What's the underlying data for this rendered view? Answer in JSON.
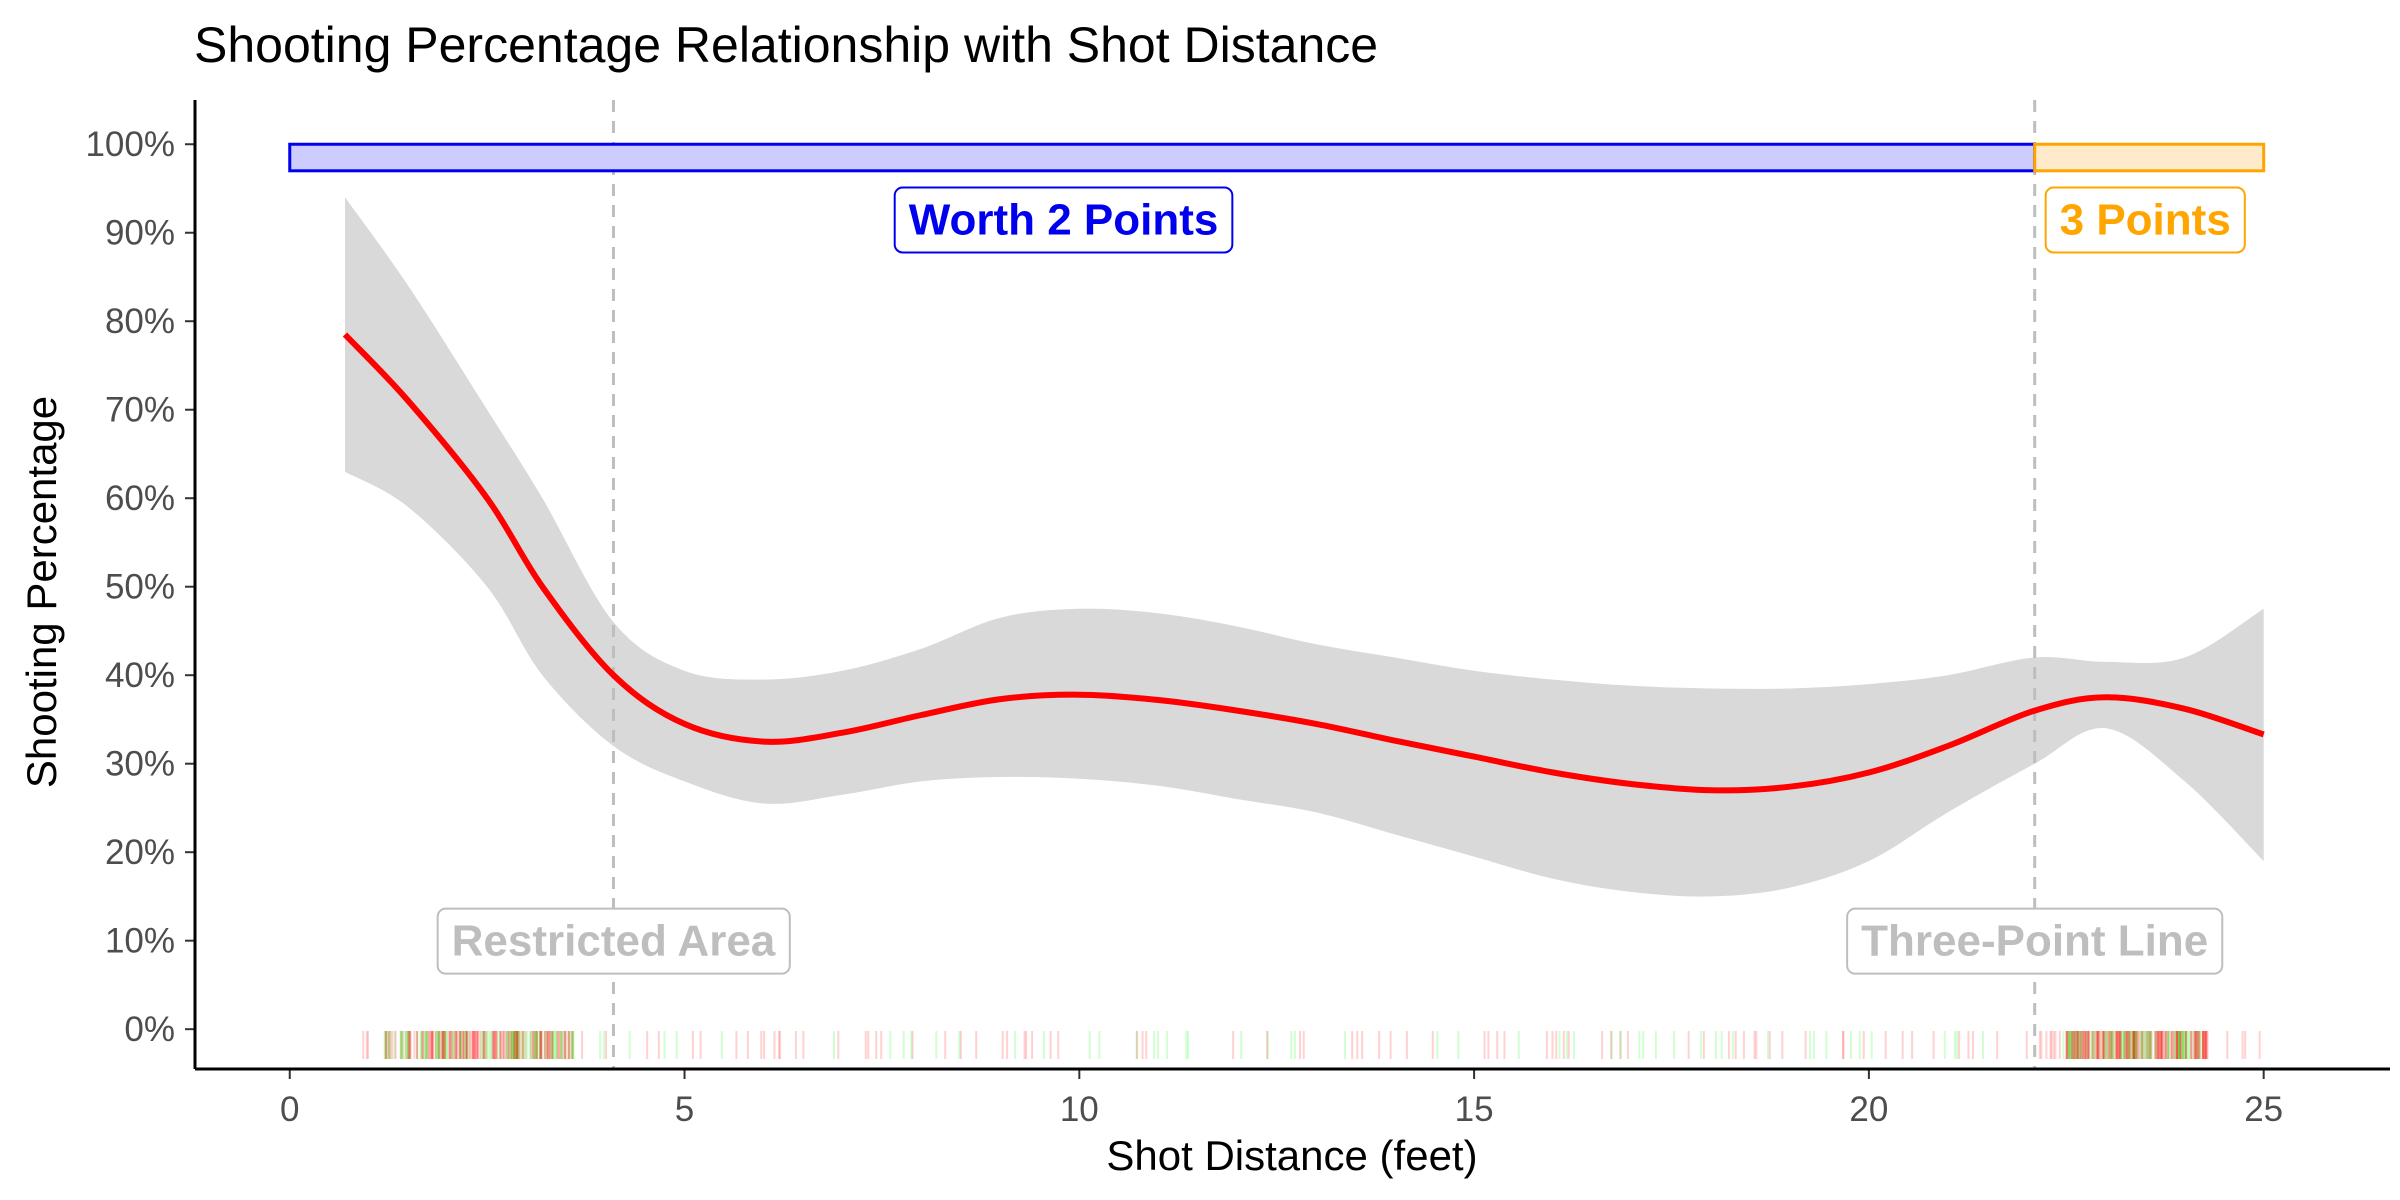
{
  "chart_data": {
    "type": "line",
    "title": "Shooting Percentage Relationship with Shot Distance",
    "xlabel": "Shot Distance (feet)",
    "ylabel": "Shooting Percentage",
    "xlim": [
      -1.2,
      26.6
    ],
    "ylim": [
      -0.045,
      1.05
    ],
    "x_ticks": [
      0,
      5,
      10,
      15,
      20,
      25
    ],
    "x_tick_labels": [
      "0",
      "5",
      "10",
      "15",
      "20",
      "25"
    ],
    "y_ticks": [
      0,
      0.1,
      0.2,
      0.3,
      0.4,
      0.5,
      0.6,
      0.7,
      0.8,
      0.9,
      1.0
    ],
    "y_tick_labels": [
      "0%",
      "10%",
      "20%",
      "30%",
      "40%",
      "50%",
      "60%",
      "70%",
      "80%",
      "90%",
      "100%"
    ],
    "grid": false,
    "series": [
      {
        "color": "#ff0000",
        "x": [
          0.7,
          1.5,
          2.5,
          3.2,
          4.1,
          5.0,
          6.0,
          7.0,
          8.0,
          9.0,
          10.0,
          11.0,
          12.0,
          13.0,
          14.0,
          15.0,
          16.0,
          17.0,
          18.0,
          19.0,
          20.0,
          21.0,
          22.1,
          23.0,
          24.0,
          25.0
        ],
        "y": [
          0.785,
          0.71,
          0.6,
          0.5,
          0.4,
          0.345,
          0.325,
          0.335,
          0.355,
          0.373,
          0.378,
          0.372,
          0.36,
          0.345,
          0.326,
          0.308,
          0.29,
          0.277,
          0.27,
          0.274,
          0.29,
          0.32,
          0.36,
          0.375,
          0.362,
          0.333
        ],
        "lower": [
          0.63,
          0.59,
          0.5,
          0.4,
          0.32,
          0.28,
          0.255,
          0.265,
          0.28,
          0.285,
          0.283,
          0.275,
          0.26,
          0.245,
          0.22,
          0.195,
          0.17,
          0.155,
          0.15,
          0.16,
          0.19,
          0.245,
          0.3,
          0.34,
          0.28,
          0.19
        ],
        "upper": [
          0.94,
          0.84,
          0.7,
          0.6,
          0.46,
          0.405,
          0.395,
          0.405,
          0.43,
          0.465,
          0.475,
          0.47,
          0.455,
          0.435,
          0.42,
          0.405,
          0.395,
          0.388,
          0.385,
          0.385,
          0.39,
          0.4,
          0.42,
          0.415,
          0.42,
          0.475
        ],
        "band_color": "#d9d9d9"
      }
    ],
    "reference_lines": [
      {
        "x": 4.1,
        "label": "Restricted Area",
        "color": "#bebebe"
      },
      {
        "x": 22.1,
        "label": "Three-Point Line",
        "color": "#bebebe"
      }
    ],
    "zones": [
      {
        "x0": 0,
        "x1": 22.1,
        "y0": 0.97,
        "y1": 1.0,
        "label": "Worth 2 Points",
        "color": "#0000ee",
        "fill": "#ccccff"
      },
      {
        "x0": 22.1,
        "x1": 25,
        "y0": 0.97,
        "y1": 1.0,
        "label": "3 Points",
        "color": "#ffa500",
        "fill": "#ffebcc"
      }
    ],
    "rug": {
      "color_make": "#00ff00",
      "color_miss": "#ff0000",
      "x_range": [
        0.7,
        25.0
      ],
      "dense_ranges": [
        [
          1.2,
          3.6
        ],
        [
          22.5,
          24.3
        ]
      ]
    }
  }
}
